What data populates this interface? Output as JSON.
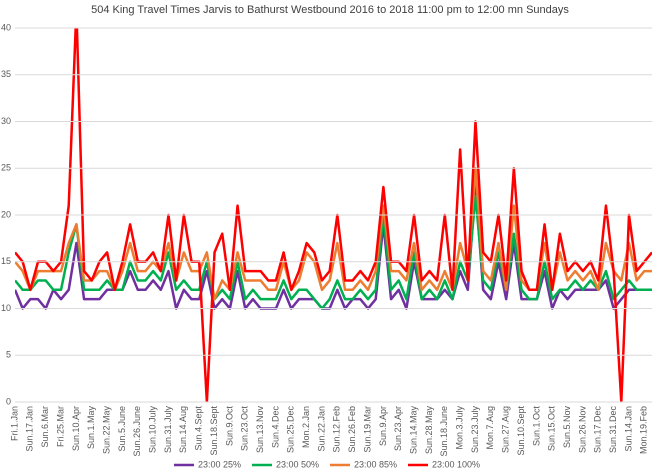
{
  "chart_data": {
    "type": "line",
    "title": "504 King Travel Times Jarvis to Bathurst Westbound 2016 to 2018 11:00 pm to 12:00 mn Sundays",
    "categories": [
      "Fri.1.Jan",
      null,
      "Sun.17.Jan",
      null,
      "Sun.6.Mar",
      null,
      "Fri.25.Mar",
      null,
      "Sun.10.Apr",
      null,
      "Sun.1.May",
      null,
      "Sun.22.May",
      null,
      "Sun.5.June",
      null,
      "Sun.26.June",
      null,
      "Sun.10.July",
      null,
      "Sun.31.July",
      null,
      "Sun.14.Aug",
      null,
      "Sun.4.Sept",
      null,
      "Sun.18.Sept",
      null,
      "Sun.9.Oct",
      null,
      "Sun.23.Oct",
      null,
      "Sun.13.Nov",
      null,
      "Sun.4.Dec",
      null,
      "Sun.25.Dec",
      null,
      "Mon.2.Jan",
      null,
      "Sun.22.Jan",
      null,
      "Sun.12.Feb",
      null,
      "Sun.26.Feb",
      null,
      "Sun.19.Mar",
      null,
      "Sun.9.Apr",
      null,
      "Sun.23.Apr",
      null,
      "Sun.14.May",
      null,
      "Sun.28.May",
      null,
      "Sun.18.June",
      null,
      "Mon.3.July",
      null,
      "Sun.23.July",
      null,
      "Mon.7.Aug",
      null,
      "Sun.27.Aug",
      null,
      "Sun.10.Sept",
      null,
      "Sun.1.Oct",
      null,
      "Sun.15.Oct",
      null,
      "Sun.5.Nov",
      null,
      "Sun.26.Nov",
      null,
      "Sun.17.Dec",
      null,
      "Sun.31.Dec",
      null,
      "Sun.14.Jan",
      null,
      "Mon.19.Feb",
      null
    ],
    "series": [
      {
        "name": "23:00 25%",
        "color": "#7030a0",
        "values": [
          12,
          10,
          11,
          11,
          10,
          12,
          11,
          12,
          17,
          11,
          11,
          11,
          12,
          12,
          12,
          14,
          12,
          12,
          13,
          12,
          14,
          10,
          12,
          11,
          11,
          14,
          10,
          11,
          10,
          14,
          10,
          11,
          10,
          10,
          10,
          12,
          10,
          11,
          11,
          11,
          10,
          10,
          12,
          10,
          11,
          11,
          10,
          11,
          19,
          11,
          12,
          10,
          15,
          11,
          11,
          11,
          12,
          11,
          14,
          12,
          23,
          12,
          11,
          15,
          11,
          17,
          11,
          11,
          11,
          14,
          10,
          12,
          11,
          12,
          12,
          12,
          12,
          13,
          10,
          11,
          12,
          12,
          12,
          12
        ]
      },
      {
        "name": "23:00 50%",
        "color": "#00b050",
        "values": [
          13,
          12,
          12,
          13,
          13,
          12,
          12,
          16,
          19,
          12,
          12,
          12,
          13,
          12,
          12,
          15,
          13,
          13,
          14,
          13,
          16,
          12,
          13,
          12,
          12,
          15,
          11,
          12,
          11,
          15,
          11,
          12,
          11,
          11,
          11,
          13,
          11,
          12,
          12,
          11,
          10,
          11,
          13,
          11,
          11,
          12,
          11,
          12,
          20,
          12,
          13,
          11,
          16,
          11,
          12,
          11,
          13,
          11,
          15,
          13,
          22,
          13,
          12,
          16,
          12,
          18,
          12,
          11,
          11,
          15,
          11,
          12,
          12,
          13,
          12,
          13,
          12,
          14,
          11,
          12,
          13,
          12,
          12,
          12
        ]
      },
      {
        "name": "23:00 85%",
        "color": "#ed7d31",
        "values": [
          15,
          14,
          12,
          14,
          14,
          14,
          14,
          17,
          19,
          13,
          13,
          14,
          14,
          12,
          14,
          17,
          14,
          14,
          15,
          14,
          17,
          13,
          16,
          14,
          14,
          16,
          11,
          13,
          12,
          16,
          13,
          13,
          13,
          12,
          12,
          15,
          12,
          13,
          16,
          15,
          12,
          13,
          17,
          12,
          12,
          13,
          12,
          14,
          21,
          14,
          14,
          13,
          17,
          12,
          13,
          12,
          14,
          12,
          17,
          14,
          25,
          14,
          13,
          17,
          12,
          21,
          13,
          12,
          12,
          17,
          12,
          16,
          13,
          14,
          13,
          14,
          12,
          17,
          14,
          13,
          17,
          13,
          14,
          14
        ]
      },
      {
        "name": "23:00 100%",
        "color": "#ff0000",
        "values": [
          16,
          15,
          12,
          15,
          15,
          14,
          15,
          21,
          42,
          14,
          13,
          15,
          16,
          12,
          15,
          19,
          15,
          15,
          16,
          14,
          20,
          13,
          20,
          15,
          15,
          0,
          16,
          18,
          12,
          21,
          14,
          14,
          14,
          13,
          13,
          16,
          12,
          14,
          17,
          16,
          13,
          14,
          20,
          13,
          13,
          14,
          13,
          15,
          23,
          15,
          15,
          14,
          20,
          13,
          14,
          13,
          20,
          12,
          27,
          13,
          30,
          16,
          15,
          20,
          13,
          25,
          14,
          12,
          12,
          19,
          12,
          18,
          14,
          15,
          14,
          15,
          13,
          21,
          14,
          0,
          20,
          14,
          15,
          16
        ]
      }
    ],
    "ylim": [
      0,
      40
    ],
    "yticks": [
      0,
      5,
      10,
      15,
      20,
      25,
      30,
      35,
      40
    ],
    "grid": true
  }
}
